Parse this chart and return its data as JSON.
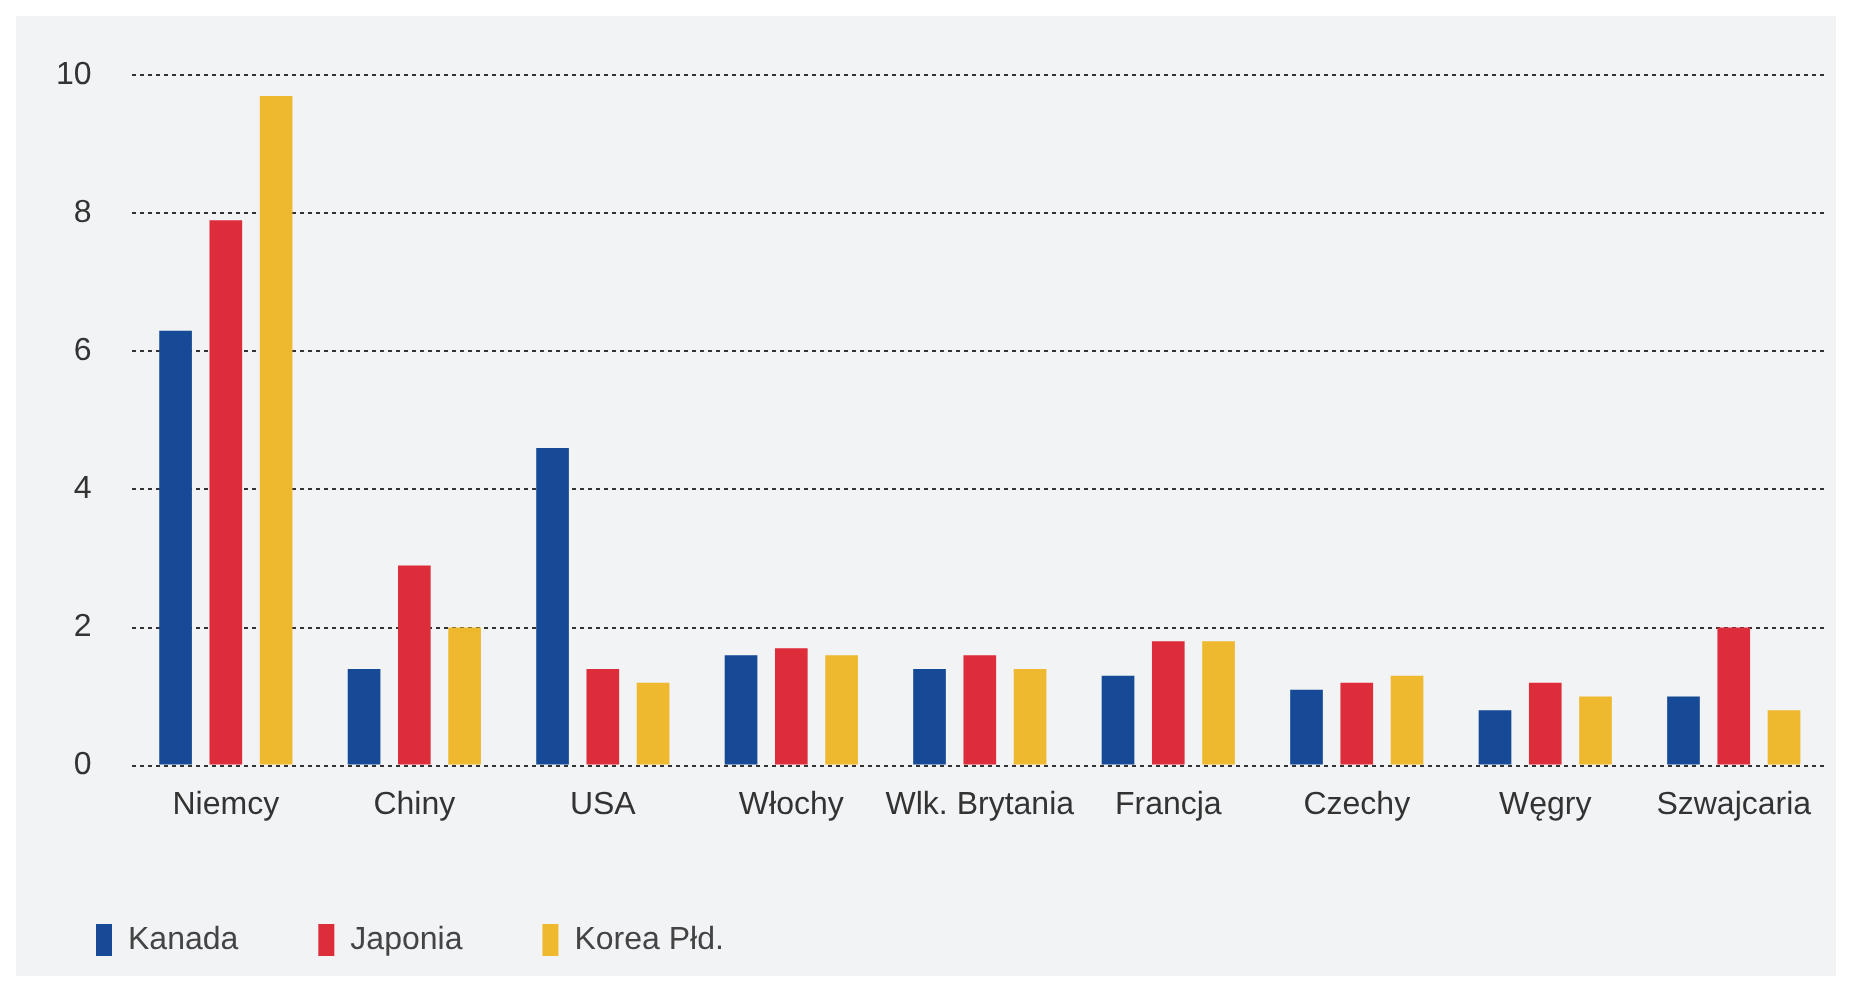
{
  "chart_data": {
    "type": "bar",
    "categories": [
      "Niemcy",
      "Chiny",
      "USA",
      "Włochy",
      "Wlk. Brytania",
      "Francja",
      "Czechy",
      "Węgry",
      "Szwajcaria"
    ],
    "series": [
      {
        "name": "Kanada",
        "color": "#164a96",
        "values": [
          6.3,
          1.4,
          4.6,
          1.6,
          1.4,
          1.3,
          1.1,
          0.8,
          1.0
        ]
      },
      {
        "name": "Japonia",
        "color": "#de2d3a",
        "values": [
          7.9,
          2.9,
          1.4,
          1.7,
          1.6,
          1.8,
          1.2,
          1.2,
          2.0
        ]
      },
      {
        "name": "Korea Płd.",
        "color": "#eeb92f",
        "values": [
          9.7,
          2.0,
          1.2,
          1.6,
          1.4,
          1.8,
          1.3,
          1.0,
          0.8
        ]
      }
    ],
    "ylim": [
      0,
      10
    ],
    "yticks": [
      0,
      2,
      4,
      6,
      8,
      10
    ],
    "grid": "y",
    "legend": "bottom left"
  }
}
